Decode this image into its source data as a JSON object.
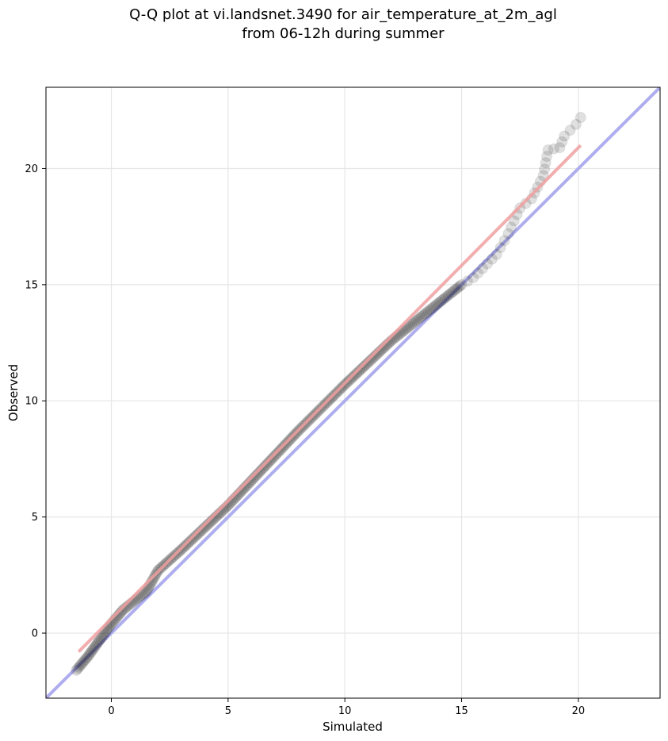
{
  "chart_data": {
    "type": "scatter",
    "title_lines": [
      "Q-Q plot at vi.landsnet.3490 for air_temperature_at_2m_agl",
      "from 06-12h during summer"
    ],
    "xlabel": "Simulated",
    "ylabel": "Observed",
    "xlim": [
      -2.8,
      23.5
    ],
    "ylim": [
      -2.8,
      23.5
    ],
    "xticks": [
      0,
      5,
      10,
      15,
      20
    ],
    "yticks": [
      0,
      5,
      10,
      15,
      20
    ],
    "grid": true,
    "reference_line": {
      "kind": "identity y = x",
      "color": "#aaaaee"
    },
    "fit_line": {
      "x": [
        -1.4,
        20.1
      ],
      "y": [
        -0.8,
        21.0
      ],
      "color": "#f0a0a0"
    },
    "point_color": "#000000",
    "quantile_anchors": [
      [
        -1.5,
        -1.6
      ],
      [
        -1.0,
        -1.0
      ],
      [
        -0.5,
        -0.3
      ],
      [
        0.0,
        0.4
      ],
      [
        0.5,
        1.0
      ],
      [
        1.0,
        1.4
      ],
      [
        1.5,
        1.8
      ],
      [
        2.0,
        2.7
      ],
      [
        3.0,
        3.6
      ],
      [
        5.0,
        5.5
      ],
      [
        8.0,
        8.7
      ],
      [
        10.0,
        10.7
      ],
      [
        12.0,
        12.6
      ],
      [
        14.0,
        14.2
      ],
      [
        15.0,
        15.0
      ],
      [
        15.5,
        15.3
      ],
      [
        16.5,
        16.3
      ],
      [
        17.0,
        17.2
      ],
      [
        17.5,
        18.3
      ],
      [
        18.0,
        18.7
      ],
      [
        18.5,
        19.7
      ],
      [
        18.7,
        20.8
      ],
      [
        19.2,
        20.9
      ],
      [
        19.4,
        21.4
      ],
      [
        19.9,
        21.9
      ],
      [
        20.1,
        22.2
      ]
    ],
    "n_points": 320
  }
}
